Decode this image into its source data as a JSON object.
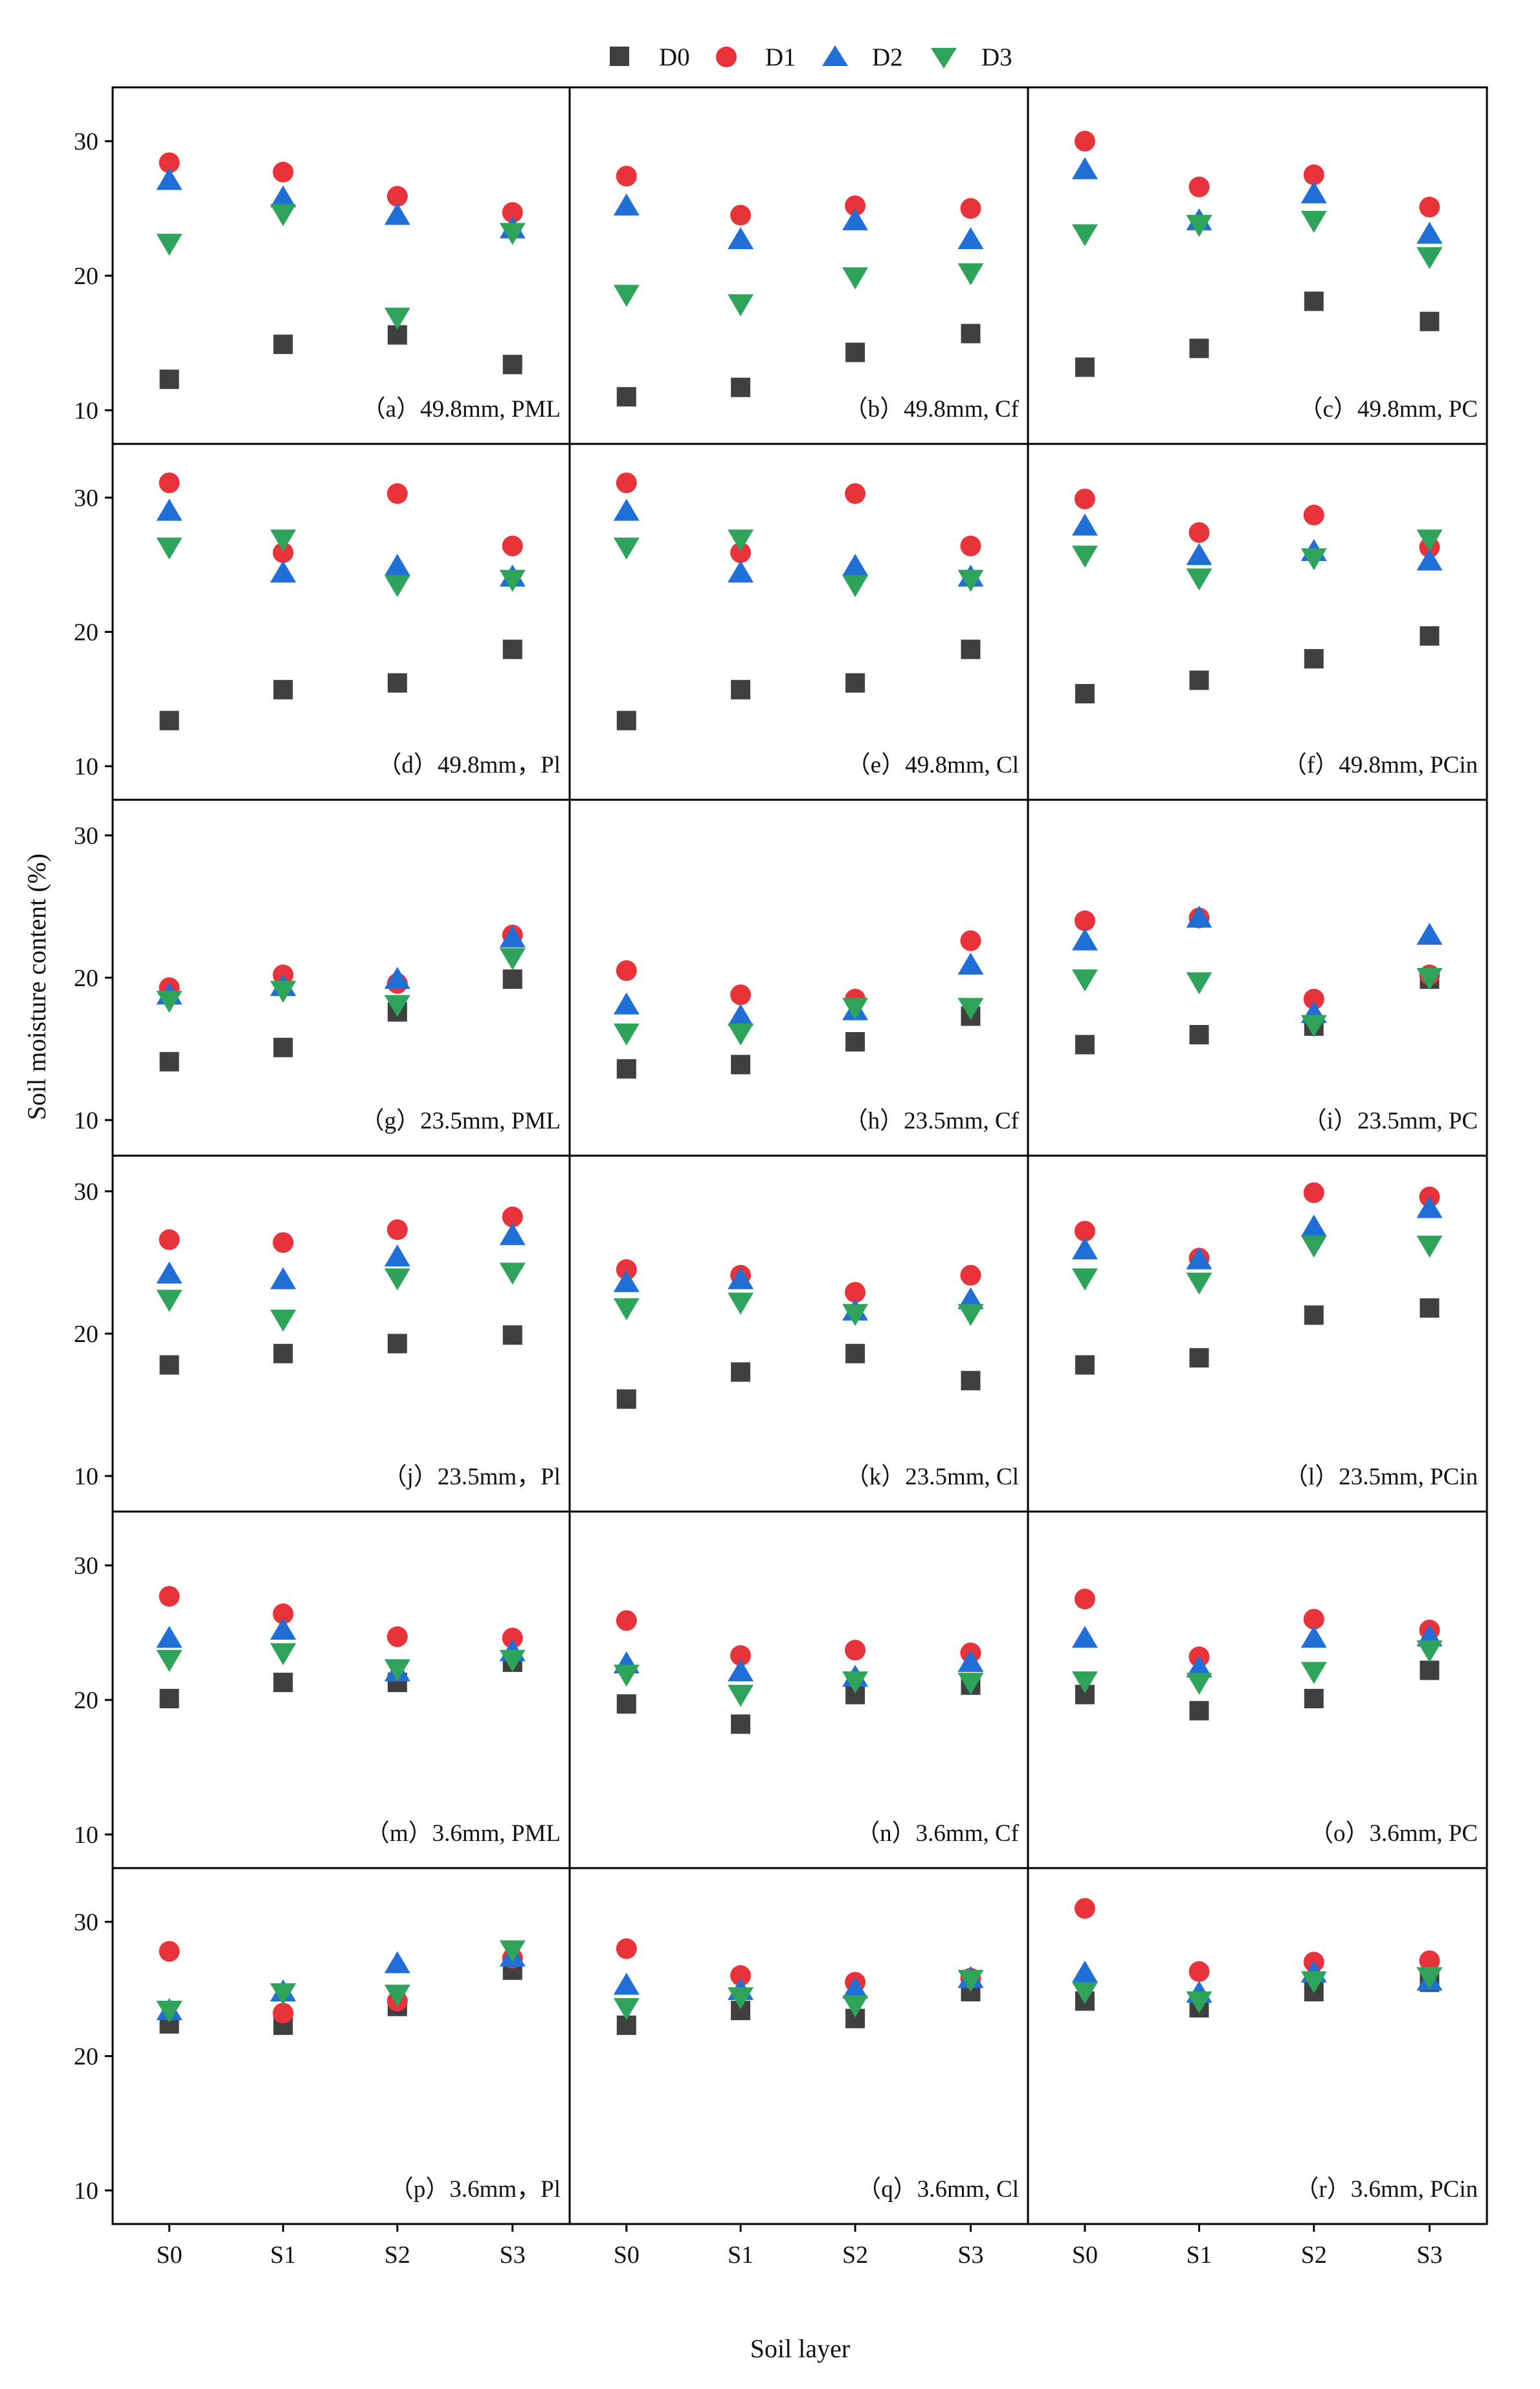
{
  "figure": {
    "xlabel": "Soil layer",
    "ylabel": "Soil moisture content (%)",
    "x_categories": [
      "S0",
      "S1",
      "S2",
      "S3"
    ],
    "y_ticks": [
      "10",
      "20",
      "30"
    ]
  },
  "legend": {
    "placement": "top-center",
    "series": [
      {
        "name": "D0",
        "marker": "square",
        "color": "#404040"
      },
      {
        "name": "D1",
        "marker": "circle",
        "color": "#e8333a"
      },
      {
        "name": "D2",
        "marker": "triangle-up",
        "color": "#1f6fd6"
      },
      {
        "name": "D3",
        "marker": "triangle-down",
        "color": "#2ea45a"
      }
    ]
  },
  "chart_data": [
    {
      "type": "scatter",
      "label": "（a）49.8mm, PML",
      "categories": [
        "S0",
        "S1",
        "S2",
        "S3"
      ],
      "ylim": [
        7.5,
        34
      ],
      "series": [
        {
          "name": "D0",
          "values": [
            12.3,
            14.9,
            15.6,
            13.4
          ]
        },
        {
          "name": "D1",
          "values": [
            28.4,
            27.7,
            25.9,
            24.7
          ]
        },
        {
          "name": "D2",
          "values": [
            27.1,
            25.8,
            24.5,
            23.5
          ]
        },
        {
          "name": "D3",
          "values": [
            22.4,
            24.6,
            16.9,
            23.2
          ]
        }
      ]
    },
    {
      "type": "scatter",
      "label": "（b）49.8mm, Cf",
      "categories": [
        "S0",
        "S1",
        "S2",
        "S3"
      ],
      "ylim": [
        7.5,
        34
      ],
      "series": [
        {
          "name": "D0",
          "values": [
            11.0,
            11.7,
            14.3,
            15.7
          ]
        },
        {
          "name": "D1",
          "values": [
            27.4,
            24.5,
            25.2,
            25.0
          ]
        },
        {
          "name": "D2",
          "values": [
            25.2,
            22.7,
            24.1,
            22.7
          ]
        },
        {
          "name": "D3",
          "values": [
            18.6,
            17.9,
            19.9,
            20.2
          ]
        }
      ]
    },
    {
      "type": "scatter",
      "label": "（c）49.8mm, PC",
      "categories": [
        "S0",
        "S1",
        "S2",
        "S3"
      ],
      "ylim": [
        7.5,
        34
      ],
      "series": [
        {
          "name": "D0",
          "values": [
            13.2,
            14.6,
            18.1,
            16.6
          ]
        },
        {
          "name": "D1",
          "values": [
            30.0,
            26.6,
            27.5,
            25.1
          ]
        },
        {
          "name": "D2",
          "values": [
            27.9,
            24.1,
            26.1,
            23.1
          ]
        },
        {
          "name": "D3",
          "values": [
            23.1,
            23.8,
            24.1,
            21.4
          ]
        }
      ]
    },
    {
      "type": "scatter",
      "label": "（d）49.8mm，Pl",
      "categories": [
        "S0",
        "S1",
        "S2",
        "S3"
      ],
      "ylim": [
        7.5,
        34
      ],
      "series": [
        {
          "name": "D0",
          "values": [
            13.4,
            15.7,
            16.2,
            18.7
          ]
        },
        {
          "name": "D1",
          "values": [
            31.1,
            25.9,
            30.3,
            26.4
          ]
        },
        {
          "name": "D2",
          "values": [
            29.0,
            24.4,
            24.9,
            24.1
          ]
        },
        {
          "name": "D3",
          "values": [
            26.3,
            26.9,
            23.5,
            23.9
          ]
        }
      ]
    },
    {
      "type": "scatter",
      "label": "（e）49.8mm, Cl",
      "categories": [
        "S0",
        "S1",
        "S2",
        "S3"
      ],
      "ylim": [
        7.5,
        34
      ],
      "series": [
        {
          "name": "D0",
          "values": [
            13.4,
            15.7,
            16.2,
            18.7
          ]
        },
        {
          "name": "D1",
          "values": [
            31.1,
            25.9,
            30.3,
            26.4
          ]
        },
        {
          "name": "D2",
          "values": [
            29.0,
            24.4,
            24.9,
            24.1
          ]
        },
        {
          "name": "D3",
          "values": [
            26.3,
            26.9,
            23.5,
            23.9
          ]
        }
      ]
    },
    {
      "type": "scatter",
      "label": "（f）49.8mm, PCin",
      "categories": [
        "S0",
        "S1",
        "S2",
        "S3"
      ],
      "ylim": [
        7.5,
        34
      ],
      "series": [
        {
          "name": "D0",
          "values": [
            15.4,
            16.4,
            18.0,
            19.7
          ]
        },
        {
          "name": "D1",
          "values": [
            29.9,
            27.4,
            28.7,
            26.3
          ]
        },
        {
          "name": "D2",
          "values": [
            27.9,
            25.7,
            26.0,
            25.3
          ]
        },
        {
          "name": "D3",
          "values": [
            25.7,
            24.0,
            25.5,
            26.9
          ]
        }
      ]
    },
    {
      "type": "scatter",
      "label": "（g）23.5mm, PML",
      "categories": [
        "S0",
        "S1",
        "S2",
        "S3"
      ],
      "ylim": [
        7.5,
        32.5
      ],
      "series": [
        {
          "name": "D0",
          "values": [
            14.1,
            15.1,
            17.6,
            19.9
          ]
        },
        {
          "name": "D1",
          "values": [
            19.3,
            20.2,
            19.6,
            23.0
          ]
        },
        {
          "name": "D2",
          "values": [
            18.8,
            19.4,
            19.9,
            22.8
          ]
        },
        {
          "name": "D3",
          "values": [
            18.4,
            19.1,
            18.1,
            21.4
          ]
        }
      ]
    },
    {
      "type": "scatter",
      "label": "（h）23.5mm, Cf",
      "categories": [
        "S0",
        "S1",
        "S2",
        "S3"
      ],
      "ylim": [
        7.5,
        32.5
      ],
      "series": [
        {
          "name": "D0",
          "values": [
            13.6,
            13.9,
            15.5,
            17.3
          ]
        },
        {
          "name": "D1",
          "values": [
            20.5,
            18.8,
            18.5,
            22.6
          ]
        },
        {
          "name": "D2",
          "values": [
            18.1,
            17.3,
            17.7,
            20.9
          ]
        },
        {
          "name": "D3",
          "values": [
            16.1,
            16.1,
            17.9,
            17.9
          ]
        }
      ]
    },
    {
      "type": "scatter",
      "label": "（i）23.5mm, PC",
      "categories": [
        "S0",
        "S1",
        "S2",
        "S3"
      ],
      "ylim": [
        7.5,
        32.5
      ],
      "series": [
        {
          "name": "D0",
          "values": [
            15.3,
            16.0,
            16.6,
            19.9
          ]
        },
        {
          "name": "D1",
          "values": [
            24.0,
            24.2,
            18.5,
            20.2
          ]
        },
        {
          "name": "D2",
          "values": [
            22.6,
            24.2,
            17.5,
            23.0
          ]
        },
        {
          "name": "D3",
          "values": [
            19.9,
            19.7,
            16.7,
            20.0
          ]
        }
      ]
    },
    {
      "type": "scatter",
      "label": "（j）23.5mm，Pl",
      "categories": [
        "S0",
        "S1",
        "S2",
        "S3"
      ],
      "ylim": [
        7.5,
        32.5
      ],
      "series": [
        {
          "name": "D0",
          "values": [
            17.8,
            18.6,
            19.3,
            19.9
          ]
        },
        {
          "name": "D1",
          "values": [
            26.6,
            26.4,
            27.3,
            28.2
          ]
        },
        {
          "name": "D2",
          "values": [
            24.2,
            23.8,
            25.4,
            26.9
          ]
        },
        {
          "name": "D3",
          "values": [
            22.4,
            21.0,
            23.9,
            24.3
          ]
        }
      ]
    },
    {
      "type": "scatter",
      "label": "（k）23.5mm, Cl",
      "categories": [
        "S0",
        "S1",
        "S2",
        "S3"
      ],
      "ylim": [
        7.5,
        32.5
      ],
      "series": [
        {
          "name": "D0",
          "values": [
            15.4,
            17.3,
            18.6,
            16.7
          ]
        },
        {
          "name": "D1",
          "values": [
            24.5,
            24.1,
            22.9,
            24.1
          ]
        },
        {
          "name": "D2",
          "values": [
            23.6,
            23.8,
            21.6,
            22.4
          ]
        },
        {
          "name": "D3",
          "values": [
            21.8,
            22.2,
            21.4,
            21.4
          ]
        }
      ]
    },
    {
      "type": "scatter",
      "label": "（l）23.5mm, PCin",
      "categories": [
        "S0",
        "S1",
        "S2",
        "S3"
      ],
      "ylim": [
        7.5,
        32.5
      ],
      "series": [
        {
          "name": "D0",
          "values": [
            17.8,
            18.3,
            21.3,
            21.8
          ]
        },
        {
          "name": "D1",
          "values": [
            27.2,
            25.3,
            29.9,
            29.6
          ]
        },
        {
          "name": "D2",
          "values": [
            25.9,
            25.2,
            27.5,
            28.8
          ]
        },
        {
          "name": "D3",
          "values": [
            23.9,
            23.6,
            26.2,
            26.2
          ]
        }
      ]
    },
    {
      "type": "scatter",
      "label": "（m）3.6mm, PML",
      "categories": [
        "S0",
        "S1",
        "S2",
        "S3"
      ],
      "ylim": [
        7.5,
        34
      ],
      "series": [
        {
          "name": "D0",
          "values": [
            20.1,
            21.3,
            21.3,
            22.8
          ]
        },
        {
          "name": "D1",
          "values": [
            27.7,
            26.4,
            24.7,
            24.6
          ]
        },
        {
          "name": "D2",
          "values": [
            24.6,
            25.2,
            22.1,
            23.6
          ]
        },
        {
          "name": "D3",
          "values": [
            23.0,
            23.5,
            22.3,
            23.0
          ]
        }
      ]
    },
    {
      "type": "scatter",
      "label": "（n）3.6mm, Cf",
      "categories": [
        "S0",
        "S1",
        "S2",
        "S3"
      ],
      "ylim": [
        7.5,
        34
      ],
      "series": [
        {
          "name": "D0",
          "values": [
            19.7,
            18.2,
            20.4,
            21.1
          ]
        },
        {
          "name": "D1",
          "values": [
            25.9,
            23.3,
            23.7,
            23.5
          ]
        },
        {
          "name": "D2",
          "values": [
            22.7,
            22.1,
            21.7,
            22.8
          ]
        },
        {
          "name": "D3",
          "values": [
            21.9,
            20.4,
            21.4,
            21.3
          ]
        }
      ]
    },
    {
      "type": "scatter",
      "label": "（o）3.6mm, PC",
      "categories": [
        "S0",
        "S1",
        "S2",
        "S3"
      ],
      "ylim": [
        7.5,
        34
      ],
      "series": [
        {
          "name": "D0",
          "values": [
            20.4,
            19.2,
            20.1,
            22.2
          ]
        },
        {
          "name": "D1",
          "values": [
            27.5,
            23.2,
            26.0,
            25.2
          ]
        },
        {
          "name": "D2",
          "values": [
            24.6,
            22.4,
            24.6,
            24.7
          ]
        },
        {
          "name": "D3",
          "values": [
            21.4,
            21.3,
            22.1,
            23.7
          ]
        }
      ]
    },
    {
      "type": "scatter",
      "label": "（p）3.6mm，Pl",
      "categories": [
        "S0",
        "S1",
        "S2",
        "S3"
      ],
      "ylim": [
        7.5,
        34
      ],
      "series": [
        {
          "name": "D0",
          "values": [
            22.4,
            22.3,
            23.7,
            26.4
          ]
        },
        {
          "name": "D1",
          "values": [
            27.8,
            23.2,
            24.1,
            27.3
          ]
        },
        {
          "name": "D2",
          "values": [
            23.4,
            24.8,
            26.9,
            27.4
          ]
        },
        {
          "name": "D3",
          "values": [
            23.4,
            24.7,
            24.6,
            27.9
          ]
        }
      ]
    },
    {
      "type": "scatter",
      "label": "（q）3.6mm, Cl",
      "categories": [
        "S0",
        "S1",
        "S2",
        "S3"
      ],
      "ylim": [
        7.5,
        34
      ],
      "series": [
        {
          "name": "D0",
          "values": [
            22.3,
            23.4,
            22.8,
            24.8
          ]
        },
        {
          "name": "D1",
          "values": [
            28.0,
            26.0,
            25.5,
            25.8
          ]
        },
        {
          "name": "D2",
          "values": [
            25.3,
            24.9,
            25.0,
            25.8
          ]
        },
        {
          "name": "D3",
          "values": [
            23.6,
            24.4,
            23.8,
            25.7
          ]
        }
      ]
    },
    {
      "type": "scatter",
      "label": "（r）3.6mm, PCin",
      "categories": [
        "S0",
        "S1",
        "S2",
        "S3"
      ],
      "ylim": [
        7.5,
        34
      ],
      "series": [
        {
          "name": "D0",
          "values": [
            24.1,
            23.6,
            24.8,
            25.5
          ]
        },
        {
          "name": "D1",
          "values": [
            31.0,
            26.3,
            27.0,
            27.1
          ]
        },
        {
          "name": "D2",
          "values": [
            26.2,
            24.7,
            26.2,
            25.6
          ]
        },
        {
          "name": "D3",
          "values": [
            24.8,
            24.1,
            25.6,
            25.9
          ]
        }
      ]
    }
  ]
}
